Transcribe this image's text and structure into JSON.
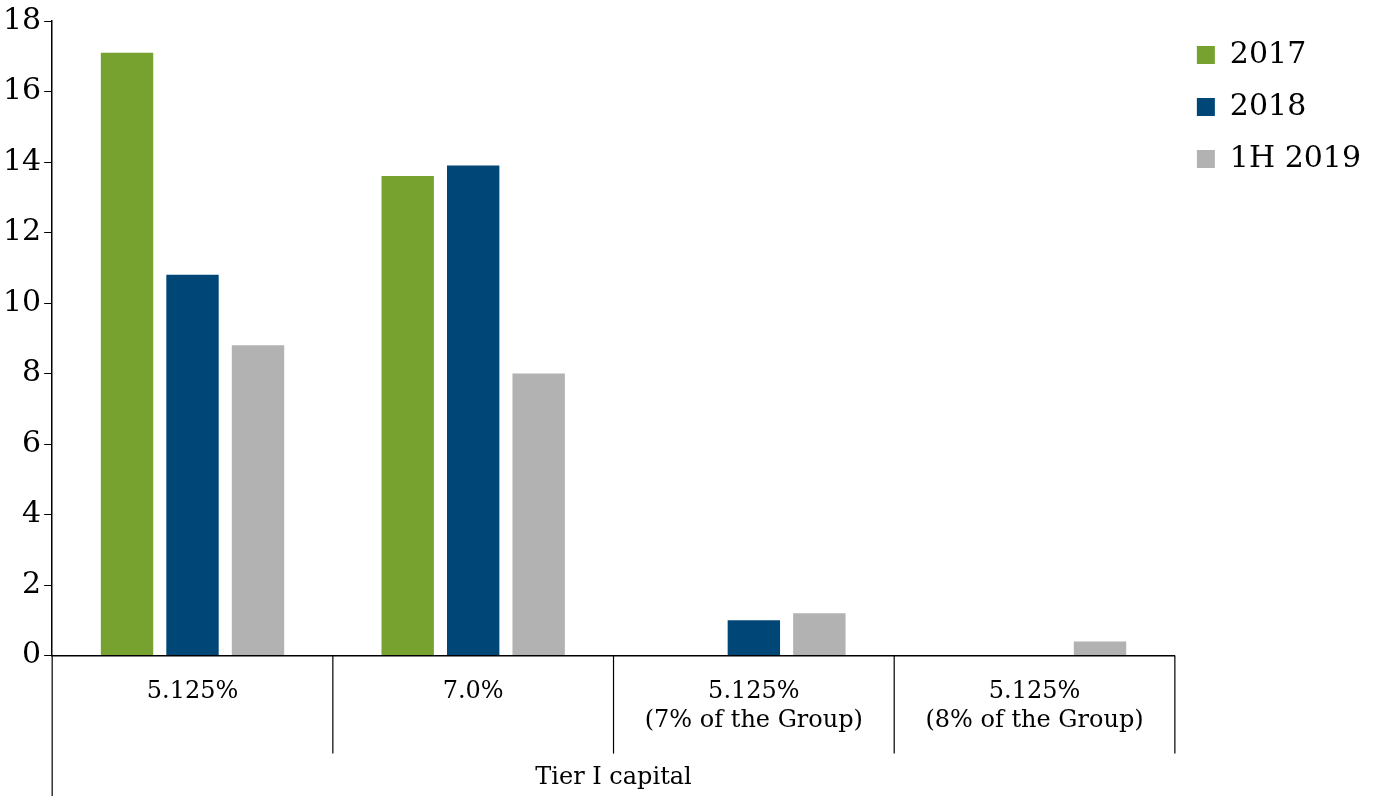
{
  "chart_data": {
    "type": "bar",
    "xlabel": "Tier I capital",
    "categories": [
      "5.125%",
      "7.0%",
      "5.125%\n(7% of the Group)",
      "5.125%\n(8% of the Group)"
    ],
    "series": [
      {
        "name": "2017",
        "color": "#78a22f",
        "values": [
          17.1,
          13.6,
          null,
          null
        ]
      },
      {
        "name": "2018",
        "color": "#004677",
        "values": [
          10.8,
          13.9,
          1.0,
          null
        ]
      },
      {
        "name": "1H 2019",
        "color": "#b2b2b2",
        "values": [
          8.8,
          8.0,
          1.2,
          0.4
        ]
      }
    ],
    "ylim": [
      0,
      18
    ],
    "yticks": [
      0,
      2,
      4,
      6,
      8,
      10,
      12,
      14,
      16,
      18
    ],
    "grid": false,
    "legend": "top right"
  }
}
